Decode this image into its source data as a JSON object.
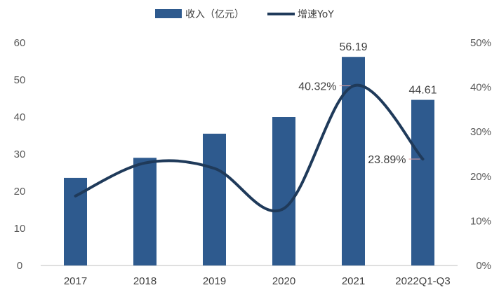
{
  "chart_data": {
    "type": "bar",
    "categories": [
      "2017",
      "2018",
      "2019",
      "2020",
      "2021",
      "2022Q1-Q3"
    ],
    "series": [
      {
        "name": "收入（亿元）",
        "kind": "bar",
        "axis": "left",
        "color": "#2e5a8e",
        "values": [
          23.6,
          29.0,
          35.5,
          40.0,
          56.19,
          44.61
        ]
      },
      {
        "name": "增速YoY",
        "kind": "line",
        "axis": "right",
        "color": "#1f3a5a",
        "values": [
          15.6,
          23.0,
          21.8,
          12.8,
          40.32,
          23.89
        ]
      }
    ],
    "bar_labels": [
      "",
      "",
      "",
      "",
      "56.19",
      "44.61"
    ],
    "line_labels": [
      "",
      "",
      "",
      "",
      "40.32%",
      "23.89%"
    ],
    "left_axis": {
      "min": 0,
      "max": 60,
      "ticks": [
        "0",
        "10",
        "20",
        "30",
        "40",
        "50",
        "60"
      ]
    },
    "right_axis": {
      "min": 0,
      "max": 50,
      "ticks": [
        "0%",
        "10%",
        "20%",
        "30%",
        "40%",
        "50%"
      ]
    },
    "grid": false,
    "legend": "top-center"
  }
}
